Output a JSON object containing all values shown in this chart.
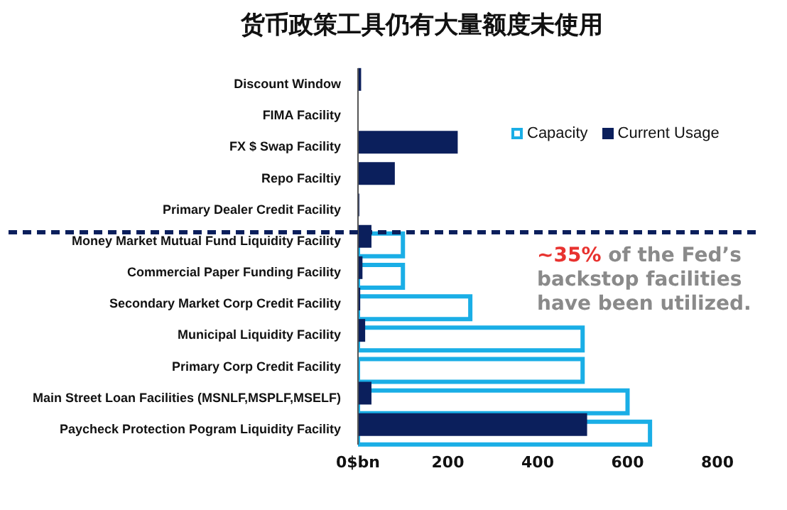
{
  "chart_data": {
    "type": "bar",
    "orientation": "horizontal",
    "title": "货币政策工具仍有大量额度未使用",
    "categories": [
      "Discount Window",
      "FIMA Facility",
      "FX $ Swap Facility",
      "Repo Faciltiy",
      "Primary Dealer Credit Facility",
      "Money Market Mutual Fund Liquidity Facility",
      "Commercial Paper Funding Facility",
      "Secondary Market Corp Credit Facility",
      "Municipal Liquidity Facility",
      "Primary Corp Credit Facility",
      "Main Street Loan Facilities (MSNLF,MSPLF,MSELF)",
      "Paycheck Protection Pogram Liquidity Facility"
    ],
    "series": [
      {
        "name": "Capacity",
        "color": "#1aaee6",
        "values": [
          null,
          null,
          null,
          null,
          null,
          100,
          100,
          250,
          500,
          500,
          600,
          650
        ]
      },
      {
        "name": "Current Usage",
        "color": "#0b1f5c",
        "values": [
          7,
          0,
          222,
          82,
          3,
          30,
          10,
          5,
          16,
          0,
          30,
          510
        ]
      }
    ],
    "xlim": [
      0,
      800
    ],
    "xticks": [
      {
        "value": 0,
        "label": "0$bn"
      },
      200,
      400,
      600,
      800
    ],
    "legend": "top right",
    "grid": false,
    "annotations": [
      "~35% of the Fed’s backstop facilities have been utilized."
    ]
  }
}
